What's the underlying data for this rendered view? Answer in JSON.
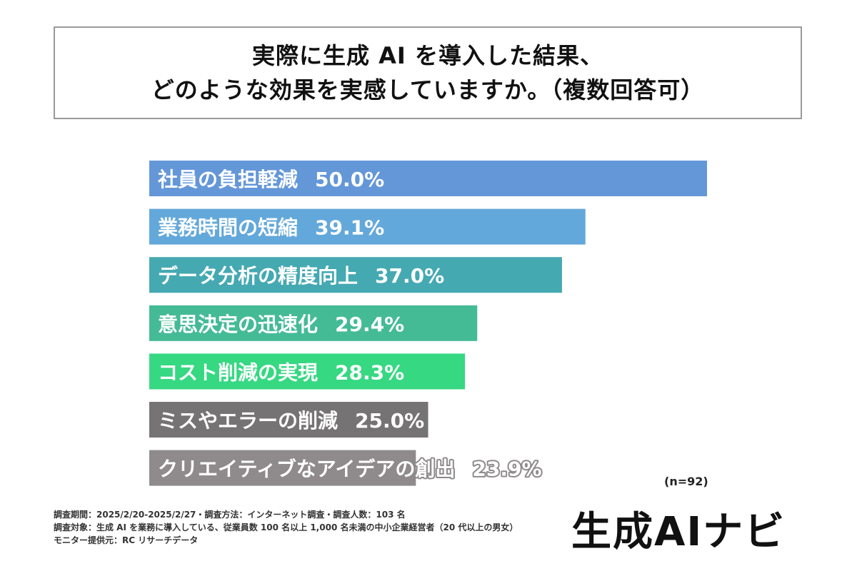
{
  "title": {
    "line1": "実際に生成 AI を導入した結果、",
    "line2": "どのような効果を実感していますか。（複数回答可）"
  },
  "chart_data": {
    "type": "bar",
    "orientation": "horizontal",
    "xlim": [
      0,
      50
    ],
    "categories": [
      "社員の負担軽減",
      "業務時間の短縮",
      "データ分析の精度向上",
      "意思決定の迅速化",
      "コスト削減の実現",
      "ミスやエラーの削減",
      "クリエイティブなアイデアの創出"
    ],
    "values": [
      50.0,
      39.1,
      37.0,
      29.4,
      28.3,
      25.0,
      23.9
    ],
    "value_labels": [
      "50.0%",
      "39.1%",
      "37.0%",
      "29.4%",
      "28.3%",
      "25.0%",
      "23.9%"
    ],
    "colors": [
      "#6497d8",
      "#63a8da",
      "#45a9b2",
      "#44bb95",
      "#36d882",
      "#767374",
      "#8f8a8b"
    ]
  },
  "note": "(n=92)",
  "footnotes": [
    "調査期間：2025/2/20-2025/2/27・調査方法：インターネット調査・調査人数：103 名",
    "調査対象：生成 AI を業務に導入している、従業員数 100 名以上 1,000 名未満の中小企業経営者（20 代以上の男女）",
    "モニター提供元：RC リサーチデータ"
  ],
  "brand": "生成AIナビ"
}
